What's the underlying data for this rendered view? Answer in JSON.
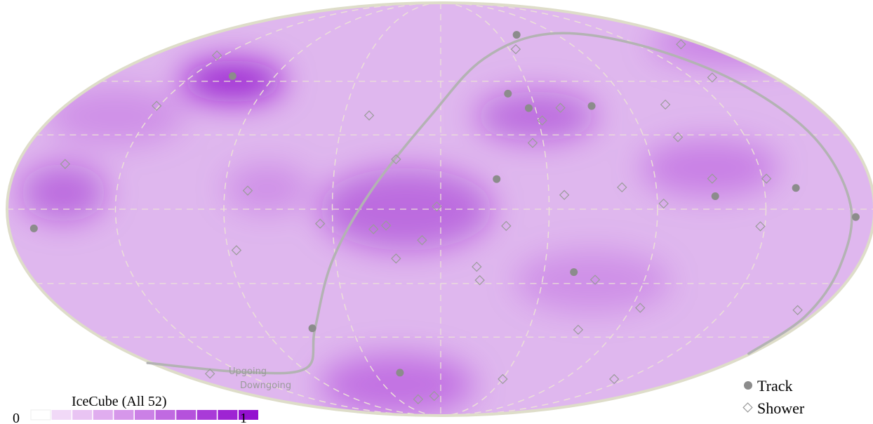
{
  "colorbar": {
    "title": "IceCube (All 52)",
    "min_label": "0",
    "max_label": "1",
    "colors": [
      "#ffffff",
      "#f1d9f7",
      "#e9c4f3",
      "#e0adef",
      "#d697ea",
      "#cb80e6",
      "#c06ae1",
      "#b552dc",
      "#a93bd8",
      "#9e24d3",
      "#9410cf"
    ]
  },
  "horizon_labels": {
    "upper": "Upgoing",
    "lower": "Downgoing"
  },
  "legend": {
    "track": "Track",
    "shower": "Shower"
  },
  "colors": {
    "track": "#8c8c8c",
    "shower": "#9b9b9b",
    "horizon": "#b3b3b3",
    "grid": "#e6d6cc",
    "border": "#deddc9",
    "accent": "#9410cf"
  },
  "hotspots": [
    {
      "u": -0.48,
      "v": 0.62,
      "w": 0.12,
      "h": 0.1,
      "level": 1.0
    },
    {
      "u": -0.87,
      "v": 0.08,
      "w": 0.1,
      "h": 0.14,
      "level": 0.55
    },
    {
      "u": -0.08,
      "v": 0.0,
      "w": 0.2,
      "h": 0.2,
      "level": 0.55
    },
    {
      "u": 0.22,
      "v": 0.45,
      "w": 0.14,
      "h": 0.12,
      "level": 0.55
    },
    {
      "u": 0.62,
      "v": 0.2,
      "w": 0.16,
      "h": 0.14,
      "level": 0.35
    },
    {
      "u": 0.68,
      "v": 0.8,
      "w": 0.2,
      "h": 0.1,
      "level": 0.35
    },
    {
      "u": -0.1,
      "v": -0.85,
      "w": 0.18,
      "h": 0.15,
      "level": 0.45
    },
    {
      "u": -0.4,
      "v": 0.1,
      "w": 0.1,
      "h": 0.12,
      "level": 0.25
    },
    {
      "u": 0.35,
      "v": -0.35,
      "w": 0.18,
      "h": 0.15,
      "level": 0.25
    },
    {
      "u": -0.75,
      "v": 0.45,
      "w": 0.16,
      "h": 0.14,
      "level": 0.25
    }
  ],
  "events": {
    "track": [
      {
        "u": -0.48,
        "v": 0.645
      },
      {
        "u": 0.175,
        "v": 0.845
      },
      {
        "u": 0.155,
        "v": 0.56
      },
      {
        "u": 0.203,
        "v": 0.49
      },
      {
        "u": 0.348,
        "v": 0.5
      },
      {
        "u": 0.129,
        "v": 0.146
      },
      {
        "u": 0.633,
        "v": 0.063
      },
      {
        "u": 0.819,
        "v": 0.103
      },
      {
        "u": 0.957,
        "v": -0.038
      },
      {
        "u": -0.938,
        "v": -0.093
      },
      {
        "u": -0.296,
        "v": -0.577
      },
      {
        "u": 0.307,
        "v": -0.305
      },
      {
        "u": -0.094,
        "v": -0.792
      }
    ],
    "shower": [
      {
        "u": -0.516,
        "v": 0.745
      },
      {
        "u": -0.655,
        "v": 0.501
      },
      {
        "u": -0.866,
        "v": 0.219
      },
      {
        "u": -0.445,
        "v": 0.09
      },
      {
        "u": -0.471,
        "v": -0.199
      },
      {
        "u": -0.278,
        "v": -0.07
      },
      {
        "u": -0.155,
        "v": -0.097
      },
      {
        "u": -0.126,
        "v": -0.079
      },
      {
        "u": -0.043,
        "v": -0.15
      },
      {
        "u": -0.103,
        "v": -0.239
      },
      {
        "u": -0.009,
        "v": 0.013
      },
      {
        "u": -0.165,
        "v": 0.454
      },
      {
        "u": -0.103,
        "v": 0.242
      },
      {
        "u": 0.173,
        "v": 0.775
      },
      {
        "u": 0.554,
        "v": 0.799
      },
      {
        "u": 0.626,
        "v": 0.638
      },
      {
        "u": 0.518,
        "v": 0.507
      },
      {
        "u": 0.276,
        "v": 0.491
      },
      {
        "u": 0.234,
        "v": 0.43
      },
      {
        "u": 0.212,
        "v": 0.321
      },
      {
        "u": 0.547,
        "v": 0.349
      },
      {
        "u": 0.418,
        "v": 0.106
      },
      {
        "u": 0.285,
        "v": 0.069
      },
      {
        "u": 0.514,
        "v": 0.027
      },
      {
        "u": 0.626,
        "v": 0.148
      },
      {
        "u": 0.751,
        "v": 0.148
      },
      {
        "u": 0.151,
        "v": -0.081
      },
      {
        "u": 0.737,
        "v": -0.083
      },
      {
        "u": 0.083,
        "v": -0.279
      },
      {
        "u": 0.09,
        "v": -0.344
      },
      {
        "u": 0.356,
        "v": -0.342
      },
      {
        "u": 0.46,
        "v": -0.478
      },
      {
        "u": 0.317,
        "v": -0.584
      },
      {
        "u": 0.823,
        "v": -0.489
      },
      {
        "u": 0.4,
        "v": -0.823
      },
      {
        "u": 0.143,
        "v": -0.823
      },
      {
        "u": -0.532,
        "v": -0.797
      },
      {
        "u": -0.052,
        "v": -0.921
      },
      {
        "u": -0.015,
        "v": -0.905
      }
    ]
  },
  "horizon_path": [
    {
      "u": -0.676,
      "v": -0.745
    },
    {
      "u": -0.45,
      "v": -0.79
    },
    {
      "u": -0.31,
      "v": -0.77
    },
    {
      "u": -0.29,
      "v": -0.58
    },
    {
      "u": -0.25,
      "v": -0.25
    },
    {
      "u": -0.16,
      "v": 0.09
    },
    {
      "u": -0.02,
      "v": 0.46
    },
    {
      "u": 0.1,
      "v": 0.73
    },
    {
      "u": 0.25,
      "v": 0.85
    },
    {
      "u": 0.45,
      "v": 0.8
    },
    {
      "u": 0.68,
      "v": 0.62
    },
    {
      "u": 0.86,
      "v": 0.35
    },
    {
      "u": 0.945,
      "v": 0.02
    },
    {
      "u": 0.92,
      "v": -0.28
    },
    {
      "u": 0.84,
      "v": -0.52
    },
    {
      "u": 0.71,
      "v": -0.7
    }
  ]
}
